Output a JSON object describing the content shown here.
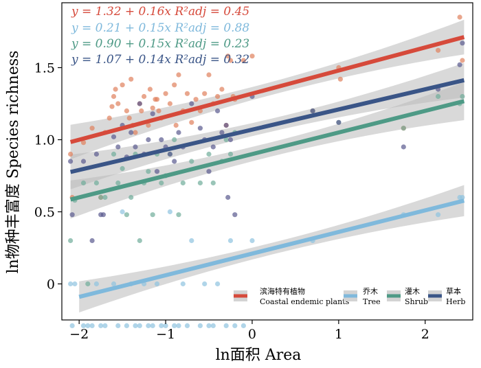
{
  "chart_data": {
    "type": "scatter",
    "xlabel": "ln面积 Area",
    "ylabel": "ln物种丰富度 Species richness",
    "xlim": [
      -2.2,
      2.55
    ],
    "ylim": [
      -0.25,
      1.95
    ],
    "xticks": [
      -2,
      -1,
      0,
      1,
      2
    ],
    "yticks": [
      0,
      0.5,
      1.0,
      1.5
    ],
    "xtick_labels": [
      "−2",
      "−1",
      "0",
      "1",
      "2"
    ],
    "ytick_labels": [
      "0",
      "0.5",
      "1.0",
      "1.5"
    ],
    "grid": false,
    "legend_position": "bottom-right",
    "series": [
      {
        "key": "coastal",
        "name_cn": "滨海特有植物",
        "name_en": "Coastal endemic plants",
        "color": "#d64a3b",
        "point_color": "#e0805d",
        "equation": "y = 1.32 + 0.16x   R²adj = 0.45",
        "intercept": 1.32,
        "slope": 0.16,
        "fit_range": [
          -2.1,
          2.45
        ],
        "band_width": 0.1,
        "points": [
          [
            -2.1,
            0.9
          ],
          [
            -2.08,
            0.6
          ],
          [
            -1.95,
            0.98
          ],
          [
            -1.85,
            1.08
          ],
          [
            -1.75,
            0.6
          ],
          [
            -1.7,
            1.05
          ],
          [
            -1.65,
            1.15
          ],
          [
            -1.62,
            1.23
          ],
          [
            -1.6,
            1.3
          ],
          [
            -1.58,
            1.35
          ],
          [
            -1.55,
            1.25
          ],
          [
            -1.5,
            1.38
          ],
          [
            -1.45,
            1.2
          ],
          [
            -1.42,
            1.15
          ],
          [
            -1.4,
            1.42
          ],
          [
            -1.38,
            1.1
          ],
          [
            -1.35,
            1.05
          ],
          [
            -1.3,
            1.25
          ],
          [
            -1.28,
            1.2
          ],
          [
            -1.25,
            1.3
          ],
          [
            -1.2,
            1.1
          ],
          [
            -1.18,
            1.35
          ],
          [
            -1.15,
            1.22
          ],
          [
            -1.12,
            1.28
          ],
          [
            -1.1,
            1.28
          ],
          [
            -1.08,
            1.2
          ],
          [
            -1.05,
            1.15
          ],
          [
            -1.0,
            1.32
          ],
          [
            -0.95,
            1.25
          ],
          [
            -0.9,
            1.38
          ],
          [
            -0.88,
            1.1
          ],
          [
            -0.85,
            1.45
          ],
          [
            -0.8,
            1.2
          ],
          [
            -0.75,
            1.32
          ],
          [
            -0.7,
            1.12
          ],
          [
            -0.65,
            1.28
          ],
          [
            -0.6,
            1.2
          ],
          [
            -0.55,
            1.32
          ],
          [
            -0.5,
            1.45
          ],
          [
            -0.45,
            1.25
          ],
          [
            -0.4,
            1.3
          ],
          [
            -0.35,
            1.35
          ],
          [
            -0.3,
            1.1
          ],
          [
            -0.28,
            1.58
          ],
          [
            -0.25,
            1.55
          ],
          [
            -0.22,
            1.3
          ],
          [
            -0.2,
            1.28
          ],
          [
            -0.1,
            1.55
          ],
          [
            0.0,
            1.58
          ],
          [
            0.7,
            1.2
          ],
          [
            1.0,
            1.5
          ],
          [
            1.02,
            1.42
          ],
          [
            1.75,
            1.08
          ],
          [
            2.15,
            1.62
          ],
          [
            2.4,
            1.85
          ],
          [
            2.43,
            1.55
          ]
        ]
      },
      {
        "key": "tree",
        "name_cn": "乔木",
        "name_en": "Tree",
        "color": "#7fb9dc",
        "point_color": "#8ec3df",
        "equation": "y = 0.21 + 0.15x   R²adj = 0.88",
        "intercept": 0.21,
        "slope": 0.15,
        "fit_range": [
          -2.0,
          2.45
        ],
        "band_width": 0.09,
        "points": [
          [
            -2.1,
            0
          ],
          [
            -2.08,
            -0.29
          ],
          [
            -2.05,
            0
          ],
          [
            -1.95,
            -0.29
          ],
          [
            -1.9,
            -0.29
          ],
          [
            -1.85,
            -0.29
          ],
          [
            -1.8,
            0
          ],
          [
            -1.75,
            -0.29
          ],
          [
            -1.7,
            -0.29
          ],
          [
            -1.6,
            0
          ],
          [
            -1.55,
            -0.29
          ],
          [
            -1.5,
            0.5
          ],
          [
            -1.45,
            -0.29
          ],
          [
            -1.4,
            0
          ],
          [
            -1.35,
            -0.29
          ],
          [
            -1.3,
            -0.29
          ],
          [
            -1.25,
            0
          ],
          [
            -1.2,
            -0.29
          ],
          [
            -1.15,
            -0.29
          ],
          [
            -1.1,
            0
          ],
          [
            -1.05,
            -0.29
          ],
          [
            -1.0,
            -0.29
          ],
          [
            -0.95,
            0.5
          ],
          [
            -0.9,
            -0.29
          ],
          [
            -0.85,
            -0.29
          ],
          [
            -0.8,
            0
          ],
          [
            -0.75,
            -0.29
          ],
          [
            -0.7,
            0.3
          ],
          [
            -0.6,
            -0.29
          ],
          [
            -0.55,
            0
          ],
          [
            -0.5,
            -0.29
          ],
          [
            -0.45,
            -0.29
          ],
          [
            -0.4,
            0
          ],
          [
            -0.3,
            -0.29
          ],
          [
            -0.25,
            0.3
          ],
          [
            -0.2,
            -0.29
          ],
          [
            -0.1,
            -0.29
          ],
          [
            0.0,
            0.3
          ],
          [
            0.7,
            0.3
          ],
          [
            1.75,
            0.48
          ],
          [
            2.15,
            0.48
          ],
          [
            2.4,
            0.6
          ],
          [
            2.43,
            0.6
          ]
        ]
      },
      {
        "key": "shrub",
        "name_cn": "灌木",
        "name_en": "Shrub",
        "color": "#4e9a86",
        "point_color": "#6fad9a",
        "equation": "y = 0.90 + 0.15x   R²adj = 0.23",
        "intercept": 0.9,
        "slope": 0.15,
        "fit_range": [
          -2.1,
          2.45
        ],
        "band_width": 0.11,
        "points": [
          [
            -2.1,
            0.3
          ],
          [
            -2.05,
            0.58
          ],
          [
            -1.95,
            0.7
          ],
          [
            -1.9,
            0
          ],
          [
            -1.8,
            0.7
          ],
          [
            -1.75,
            0.6
          ],
          [
            -1.7,
            0.6
          ],
          [
            -1.6,
            0.9
          ],
          [
            -1.55,
            0.7
          ],
          [
            -1.5,
            0.8
          ],
          [
            -1.45,
            0.48
          ],
          [
            -1.4,
            0.6
          ],
          [
            -1.35,
            0.9
          ],
          [
            -1.3,
            0.3
          ],
          [
            -1.25,
            0.7
          ],
          [
            -1.2,
            0.78
          ],
          [
            -1.15,
            0.48
          ],
          [
            -1.1,
            0.9
          ],
          [
            -1.05,
            0.7
          ],
          [
            -1.0,
            0.75
          ],
          [
            -0.95,
            0.9
          ],
          [
            -0.9,
            1.0
          ],
          [
            -0.85,
            0.48
          ],
          [
            -0.8,
            0.7
          ],
          [
            -0.7,
            0.85
          ],
          [
            -0.6,
            0.7
          ],
          [
            -0.5,
            0.9
          ],
          [
            -0.45,
            0.7
          ],
          [
            -0.35,
            0.85
          ],
          [
            -0.3,
            1.0
          ],
          [
            -0.25,
            0.9
          ],
          [
            -0.2,
            1.05
          ],
          [
            0.7,
            1.2
          ],
          [
            1.0,
            1.12
          ],
          [
            1.75,
            1.08
          ],
          [
            2.15,
            1.3
          ],
          [
            2.4,
            1.25
          ],
          [
            2.43,
            1.3
          ]
        ]
      },
      {
        "key": "herb",
        "name_cn": "草本",
        "name_en": "Herb",
        "color": "#3a5587",
        "point_color": "#5a5a8e",
        "equation": "y = 1.07 + 0.14x   R²adj = 0.32",
        "intercept": 1.07,
        "slope": 0.14,
        "fit_range": [
          -2.1,
          2.45
        ],
        "band_width": 0.1,
        "points": [
          [
            -2.1,
            0.85
          ],
          [
            -2.08,
            0.48
          ],
          [
            -1.95,
            0.85
          ],
          [
            -1.85,
            0.3
          ],
          [
            -1.8,
            0.9
          ],
          [
            -1.75,
            0.48
          ],
          [
            -1.72,
            0.48
          ],
          [
            -1.6,
            1.02
          ],
          [
            -1.55,
            0.95
          ],
          [
            -1.5,
            1.1
          ],
          [
            -1.45,
            0.88
          ],
          [
            -1.4,
            1.05
          ],
          [
            -1.35,
            0.95
          ],
          [
            -1.3,
            1.25
          ],
          [
            -1.25,
            0.9
          ],
          [
            -1.2,
            1.0
          ],
          [
            -1.15,
            1.18
          ],
          [
            -1.1,
            0.78
          ],
          [
            -1.05,
            1.0
          ],
          [
            -1.0,
            0.95
          ],
          [
            -0.95,
            0.9
          ],
          [
            -0.9,
            0.85
          ],
          [
            -0.85,
            1.05
          ],
          [
            -0.8,
            0.95
          ],
          [
            -0.7,
            1.25
          ],
          [
            -0.6,
            1.08
          ],
          [
            -0.55,
            1.0
          ],
          [
            -0.5,
            0.78
          ],
          [
            -0.45,
            0.95
          ],
          [
            -0.4,
            1.2
          ],
          [
            -0.35,
            1.05
          ],
          [
            -0.3,
            1.1
          ],
          [
            -0.28,
            0.6
          ],
          [
            -0.25,
            1.0
          ],
          [
            -0.2,
            0.48
          ],
          [
            0.0,
            1.3
          ],
          [
            0.7,
            1.2
          ],
          [
            1.0,
            1.12
          ],
          [
            1.75,
            0.95
          ],
          [
            2.15,
            1.35
          ],
          [
            2.4,
            1.52
          ],
          [
            2.43,
            1.67
          ]
        ]
      }
    ]
  }
}
